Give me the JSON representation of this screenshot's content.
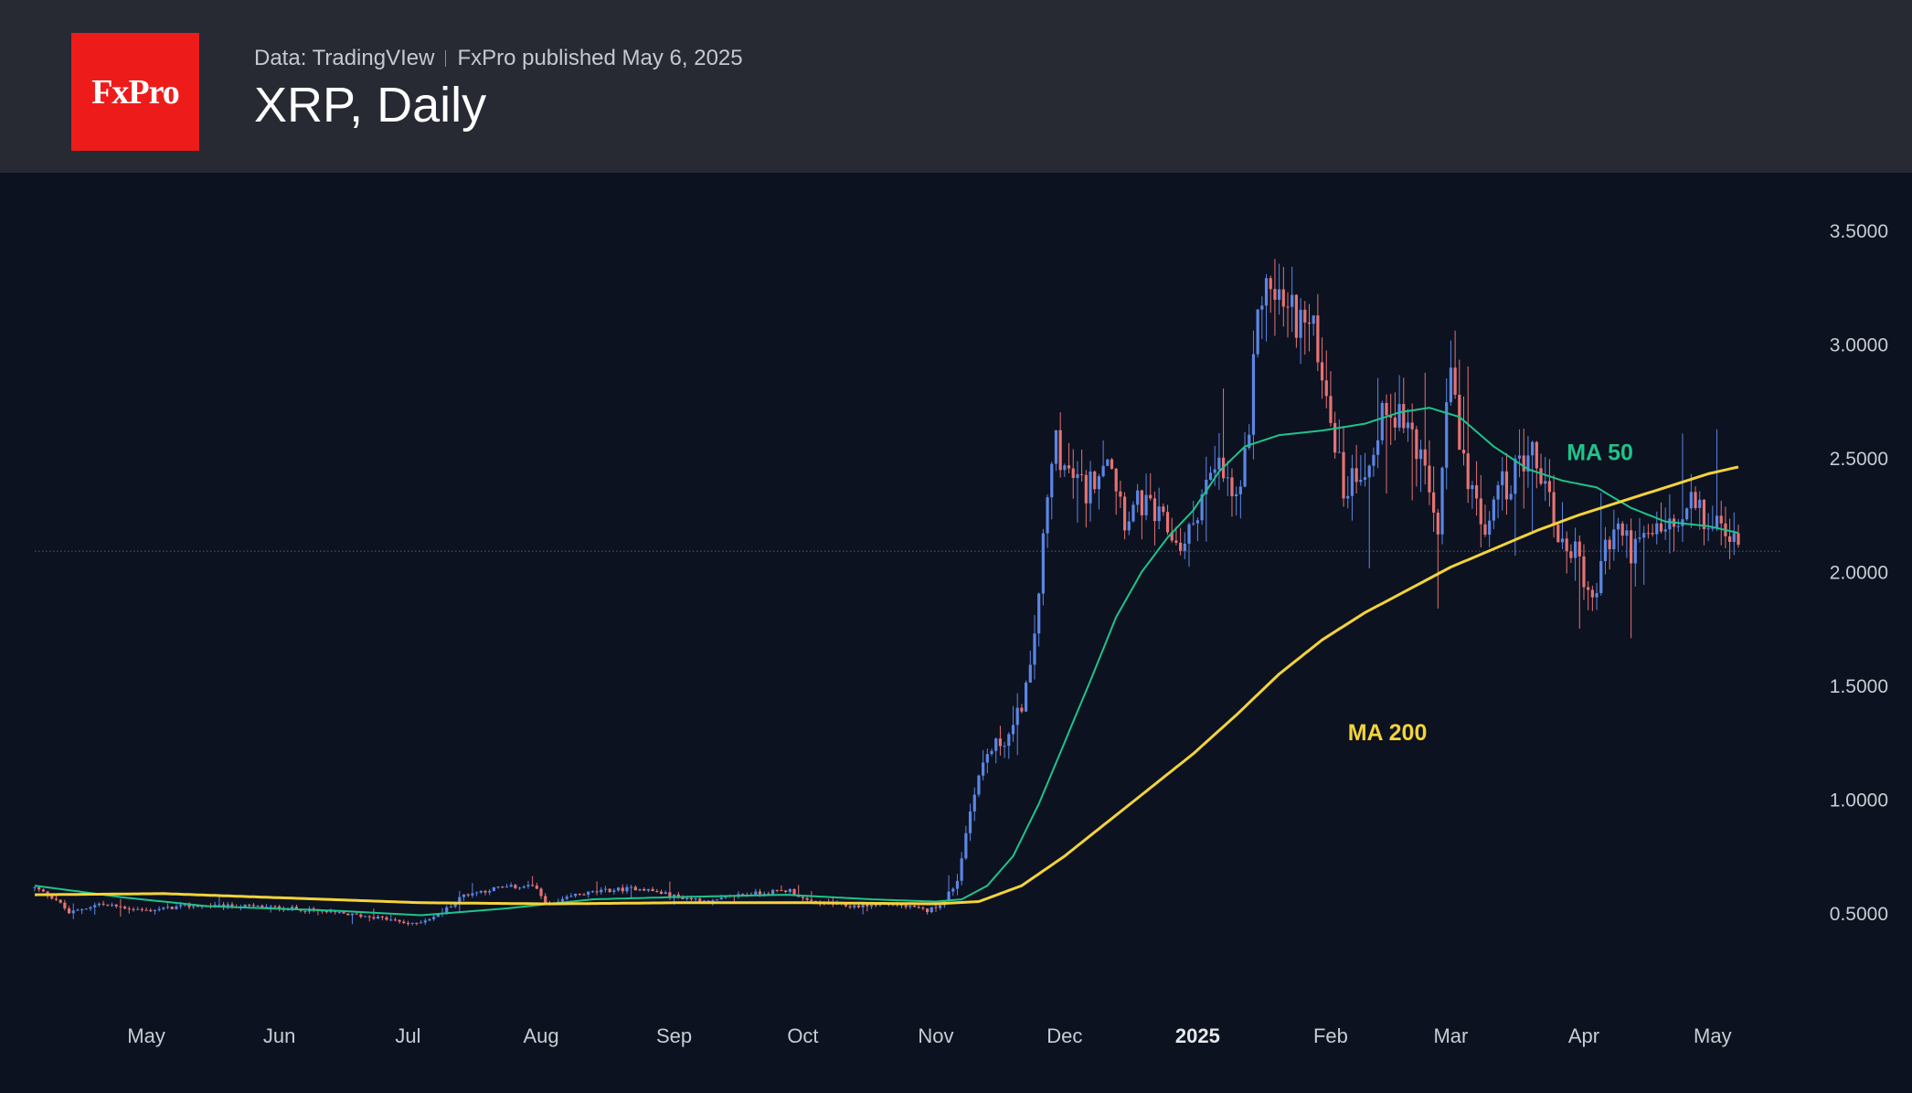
{
  "header": {
    "logo_text": "FxPro",
    "source": "Data: TradingVIew",
    "publisher": "FxPro published May 6, 2025",
    "title": "XRP, Daily"
  },
  "chart_data": {
    "type": "candlestick",
    "title": "XRP, Daily",
    "ylim": [
      0.25,
      3.6
    ],
    "y_ticks": [
      {
        "v": 3.5,
        "label": "3.5000"
      },
      {
        "v": 3.0,
        "label": "3.0000"
      },
      {
        "v": 2.5,
        "label": "2.5000"
      },
      {
        "v": 2.0,
        "label": "2.0000"
      },
      {
        "v": 1.5,
        "label": "1.5000"
      },
      {
        "v": 1.0,
        "label": "1.0000"
      },
      {
        "v": 0.5,
        "label": "0.5000"
      }
    ],
    "x_ticks": [
      {
        "d": 26,
        "label": "May",
        "bold": false
      },
      {
        "d": 57,
        "label": "Jun",
        "bold": false
      },
      {
        "d": 87,
        "label": "Jul",
        "bold": false
      },
      {
        "d": 118,
        "label": "Aug",
        "bold": false
      },
      {
        "d": 149,
        "label": "Sep",
        "bold": false
      },
      {
        "d": 179,
        "label": "Oct",
        "bold": false
      },
      {
        "d": 210,
        "label": "Nov",
        "bold": false
      },
      {
        "d": 240,
        "label": "Dec",
        "bold": false
      },
      {
        "d": 271,
        "label": "2025",
        "bold": true
      },
      {
        "d": 302,
        "label": "Feb",
        "bold": false
      },
      {
        "d": 330,
        "label": "Mar",
        "bold": false
      },
      {
        "d": 361,
        "label": "Apr",
        "bold": false
      },
      {
        "d": 391,
        "label": "May",
        "bold": false
      }
    ],
    "day_range": [
      0,
      400
    ],
    "current_price": 2.09,
    "price_anchors": [
      [
        0,
        0.61
      ],
      [
        5,
        0.56
      ],
      [
        8,
        0.5
      ],
      [
        15,
        0.54
      ],
      [
        26,
        0.51
      ],
      [
        35,
        0.53
      ],
      [
        50,
        0.53
      ],
      [
        60,
        0.52
      ],
      [
        70,
        0.5
      ],
      [
        80,
        0.48
      ],
      [
        88,
        0.45
      ],
      [
        94,
        0.49
      ],
      [
        100,
        0.58
      ],
      [
        108,
        0.61
      ],
      [
        116,
        0.62
      ],
      [
        120,
        0.53
      ],
      [
        126,
        0.58
      ],
      [
        134,
        0.6
      ],
      [
        141,
        0.61
      ],
      [
        150,
        0.57
      ],
      [
        158,
        0.55
      ],
      [
        164,
        0.58
      ],
      [
        176,
        0.6
      ],
      [
        180,
        0.55
      ],
      [
        190,
        0.53
      ],
      [
        200,
        0.54
      ],
      [
        208,
        0.51
      ],
      [
        212,
        0.55
      ],
      [
        215,
        0.65
      ],
      [
        219,
        1.05
      ],
      [
        222,
        1.2
      ],
      [
        228,
        1.3
      ],
      [
        232,
        1.55
      ],
      [
        236,
        2.3
      ],
      [
        238,
        2.6
      ],
      [
        240,
        2.45
      ],
      [
        245,
        2.35
      ],
      [
        250,
        2.55
      ],
      [
        254,
        2.25
      ],
      [
        258,
        2.3
      ],
      [
        263,
        2.2
      ],
      [
        268,
        2.1
      ],
      [
        272,
        2.35
      ],
      [
        276,
        2.45
      ],
      [
        280,
        2.3
      ],
      [
        283,
        2.55
      ],
      [
        285,
        3.2
      ],
      [
        288,
        3.25
      ],
      [
        292,
        3.15
      ],
      [
        296,
        3.1
      ],
      [
        299,
        3.0
      ],
      [
        302,
        2.7
      ],
      [
        305,
        2.35
      ],
      [
        308,
        2.45
      ],
      [
        312,
        2.5
      ],
      [
        315,
        2.75
      ],
      [
        318,
        2.7
      ],
      [
        321,
        2.6
      ],
      [
        324,
        2.4
      ],
      [
        327,
        2.2
      ],
      [
        330,
        2.9
      ],
      [
        332,
        2.5
      ],
      [
        335,
        2.4
      ],
      [
        338,
        2.1
      ],
      [
        340,
        2.35
      ],
      [
        344,
        2.4
      ],
      [
        348,
        2.55
      ],
      [
        352,
        2.4
      ],
      [
        355,
        2.15
      ],
      [
        358,
        2.1
      ],
      [
        360,
        2.05
      ],
      [
        363,
        1.85
      ],
      [
        366,
        2.1
      ],
      [
        369,
        2.2
      ],
      [
        372,
        2.1
      ],
      [
        375,
        2.12
      ],
      [
        379,
        2.2
      ],
      [
        383,
        2.18
      ],
      [
        386,
        2.3
      ],
      [
        389,
        2.22
      ],
      [
        392,
        2.2
      ],
      [
        395,
        2.15
      ],
      [
        397,
        2.1
      ]
    ],
    "series": [
      {
        "name": "MA 50",
        "color": "#1ec48a",
        "points": [
          [
            0,
            0.62
          ],
          [
            20,
            0.57
          ],
          [
            40,
            0.53
          ],
          [
            70,
            0.51
          ],
          [
            90,
            0.49
          ],
          [
            110,
            0.52
          ],
          [
            130,
            0.56
          ],
          [
            150,
            0.57
          ],
          [
            175,
            0.58
          ],
          [
            195,
            0.56
          ],
          [
            210,
            0.55
          ],
          [
            216,
            0.56
          ],
          [
            222,
            0.62
          ],
          [
            228,
            0.75
          ],
          [
            234,
            0.98
          ],
          [
            240,
            1.25
          ],
          [
            246,
            1.52
          ],
          [
            252,
            1.8
          ],
          [
            258,
            2.0
          ],
          [
            264,
            2.15
          ],
          [
            270,
            2.27
          ],
          [
            276,
            2.44
          ],
          [
            282,
            2.55
          ],
          [
            290,
            2.6
          ],
          [
            300,
            2.62
          ],
          [
            310,
            2.65
          ],
          [
            318,
            2.7
          ],
          [
            325,
            2.72
          ],
          [
            332,
            2.68
          ],
          [
            340,
            2.55
          ],
          [
            348,
            2.45
          ],
          [
            356,
            2.4
          ],
          [
            364,
            2.37
          ],
          [
            372,
            2.28
          ],
          [
            380,
            2.22
          ],
          [
            390,
            2.2
          ],
          [
            397,
            2.17
          ]
        ]
      },
      {
        "name": "MA 200",
        "color": "#f3d33a",
        "points": [
          [
            0,
            0.58
          ],
          [
            30,
            0.585
          ],
          [
            60,
            0.565
          ],
          [
            90,
            0.545
          ],
          [
            120,
            0.54
          ],
          [
            150,
            0.545
          ],
          [
            180,
            0.545
          ],
          [
            210,
            0.54
          ],
          [
            220,
            0.55
          ],
          [
            230,
            0.62
          ],
          [
            240,
            0.75
          ],
          [
            250,
            0.9
          ],
          [
            260,
            1.05
          ],
          [
            270,
            1.2
          ],
          [
            280,
            1.37
          ],
          [
            290,
            1.55
          ],
          [
            300,
            1.7
          ],
          [
            310,
            1.82
          ],
          [
            320,
            1.92
          ],
          [
            330,
            2.02
          ],
          [
            340,
            2.1
          ],
          [
            350,
            2.18
          ],
          [
            360,
            2.25
          ],
          [
            370,
            2.31
          ],
          [
            380,
            2.37
          ],
          [
            390,
            2.43
          ],
          [
            397,
            2.46
          ]
        ]
      }
    ],
    "annotations": [
      {
        "text": "MA 50",
        "color": "#1ec48a",
        "d": 357,
        "v": 2.49
      },
      {
        "text": "MA 200",
        "color": "#f3d33a",
        "d": 306,
        "v": 1.26
      }
    ],
    "colors": {
      "up": "#5b86e5",
      "down": "#e57373",
      "bg": "#0c1220",
      "grid_line": "#5a5f6a",
      "axis_text": "#c9ccd3"
    }
  }
}
